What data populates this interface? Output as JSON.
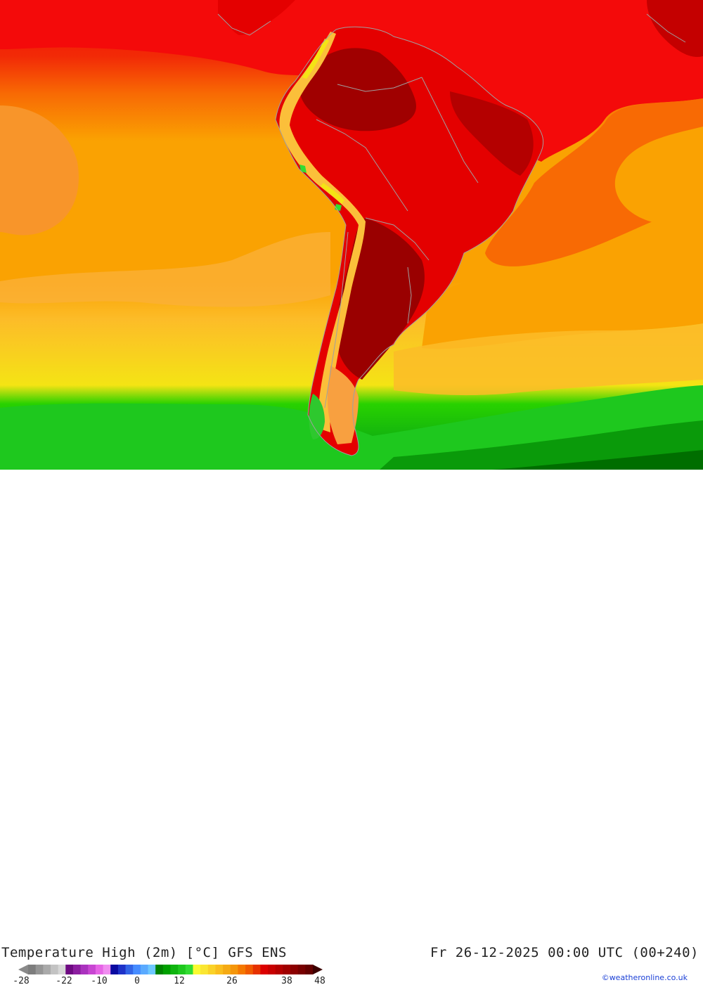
{
  "map": {
    "title": "Temperature High (2m) [°C] GFS ENS",
    "valid_time": "Fr 26-12-2025 00:00 UTC (00+240)",
    "credit": "©weatheronline.co.uk",
    "region": "South America",
    "colors": {
      "deep_red": "#a00000",
      "red": "#e40000",
      "bright_red": "#f40a0a",
      "orange_red": "#f86a04",
      "orange": "#faa202",
      "light_orange": "#fcbc28",
      "yellow": "#f4e414",
      "light_green": "#28d200",
      "green": "#0fb40f",
      "dark_green": "#007800",
      "border": "#a0a0a0"
    }
  },
  "legend": {
    "labels": [
      "-28",
      "-22",
      "-10",
      "0",
      "12",
      "26",
      "38",
      "48"
    ],
    "colors": [
      "#7d7d7d",
      "#959595",
      "#aaaaaa",
      "#c3c3c3",
      "#d7d7d7",
      "#6e0a82",
      "#8c1ea0",
      "#aa32be",
      "#c846d2",
      "#e664e6",
      "#f08cf0",
      "#0a0aa0",
      "#1e32c8",
      "#3264e6",
      "#468cff",
      "#5aaaff",
      "#6ec8ff",
      "#008200",
      "#00a000",
      "#0fb40f",
      "#1ec81e",
      "#32dc32",
      "#fafa32",
      "#fae632",
      "#fad228",
      "#fabe1e",
      "#f5aa14",
      "#f5960a",
      "#f57800",
      "#f05a00",
      "#e63200",
      "#dc0000",
      "#c80000",
      "#b40000",
      "#a00000",
      "#8c0000",
      "#780000",
      "#640000"
    ]
  }
}
